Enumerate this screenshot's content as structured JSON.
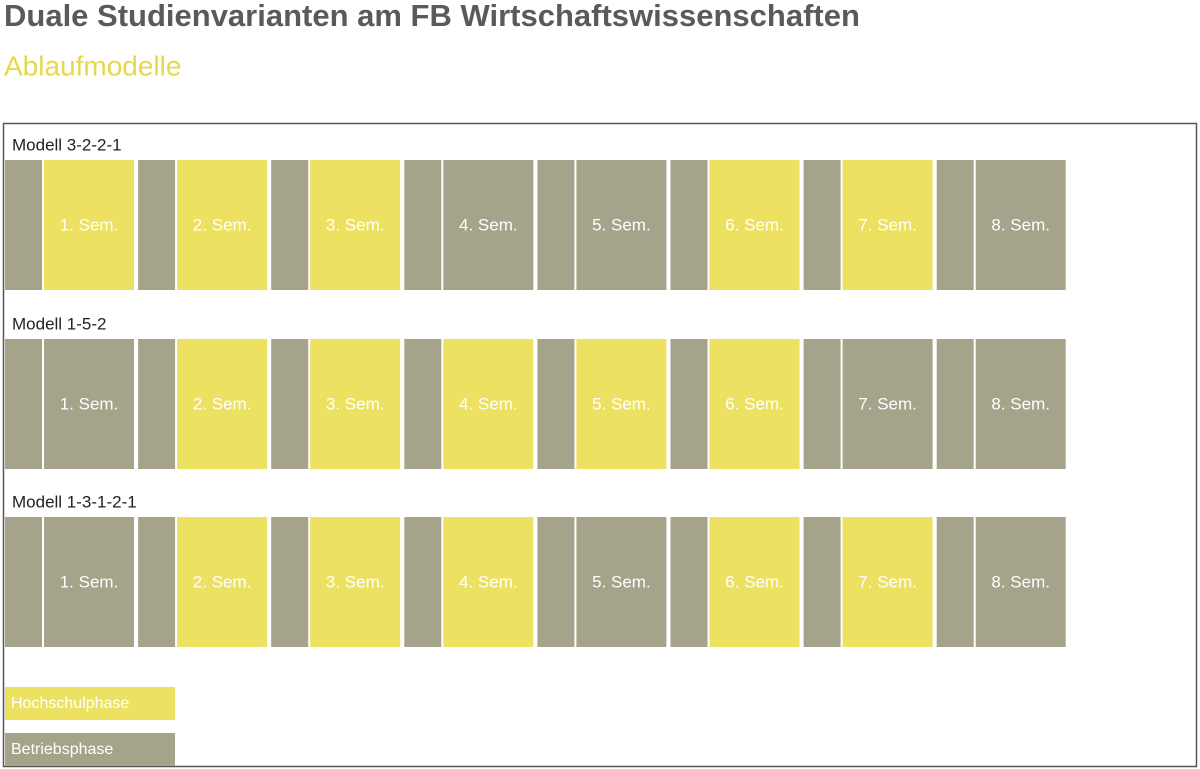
{
  "header": {
    "title": "Duale Studienvarianten am FB Wirtschaftswissenschaften",
    "subtitle": "Ablaufmodelle"
  },
  "legend": [
    {
      "label": "Hochschulphase",
      "color": "#ede162"
    },
    {
      "label": "Betriebsphase",
      "color": "#a5a38a"
    }
  ],
  "models": [
    {
      "label": "Modell 3-2-2-1",
      "semesters": [
        {
          "label": "1. Sem.",
          "phase": 0
        },
        {
          "label": "2. Sem.",
          "phase": 0
        },
        {
          "label": "3. Sem.",
          "phase": 0
        },
        {
          "label": "4. Sem.",
          "phase": 1
        },
        {
          "label": "5. Sem.",
          "phase": 1
        },
        {
          "label": "6. Sem.",
          "phase": 0
        },
        {
          "label": "7. Sem.",
          "phase": 0
        },
        {
          "label": "8. Sem.",
          "phase": 1
        }
      ]
    },
    {
      "label": "Modell 1-5-2",
      "semesters": [
        {
          "label": "1. Sem.",
          "phase": 1
        },
        {
          "label": "2. Sem.",
          "phase": 0
        },
        {
          "label": "3. Sem.",
          "phase": 0
        },
        {
          "label": "4. Sem.",
          "phase": 0
        },
        {
          "label": "5. Sem.",
          "phase": 0
        },
        {
          "label": "6. Sem.",
          "phase": 0
        },
        {
          "label": "7. Sem.",
          "phase": 1
        },
        {
          "label": "8. Sem.",
          "phase": 1
        }
      ]
    },
    {
      "label": "Modell 1-3-1-2-1",
      "semesters": [
        {
          "label": "1. Sem.",
          "phase": 1
        },
        {
          "label": "2. Sem.",
          "phase": 0
        },
        {
          "label": "3. Sem.",
          "phase": 0
        },
        {
          "label": "4. Sem.",
          "phase": 0
        },
        {
          "label": "5. Sem.",
          "phase": 1
        },
        {
          "label": "6. Sem.",
          "phase": 0
        },
        {
          "label": "7. Sem.",
          "phase": 0
        },
        {
          "label": "8. Sem.",
          "phase": 1
        }
      ]
    }
  ]
}
